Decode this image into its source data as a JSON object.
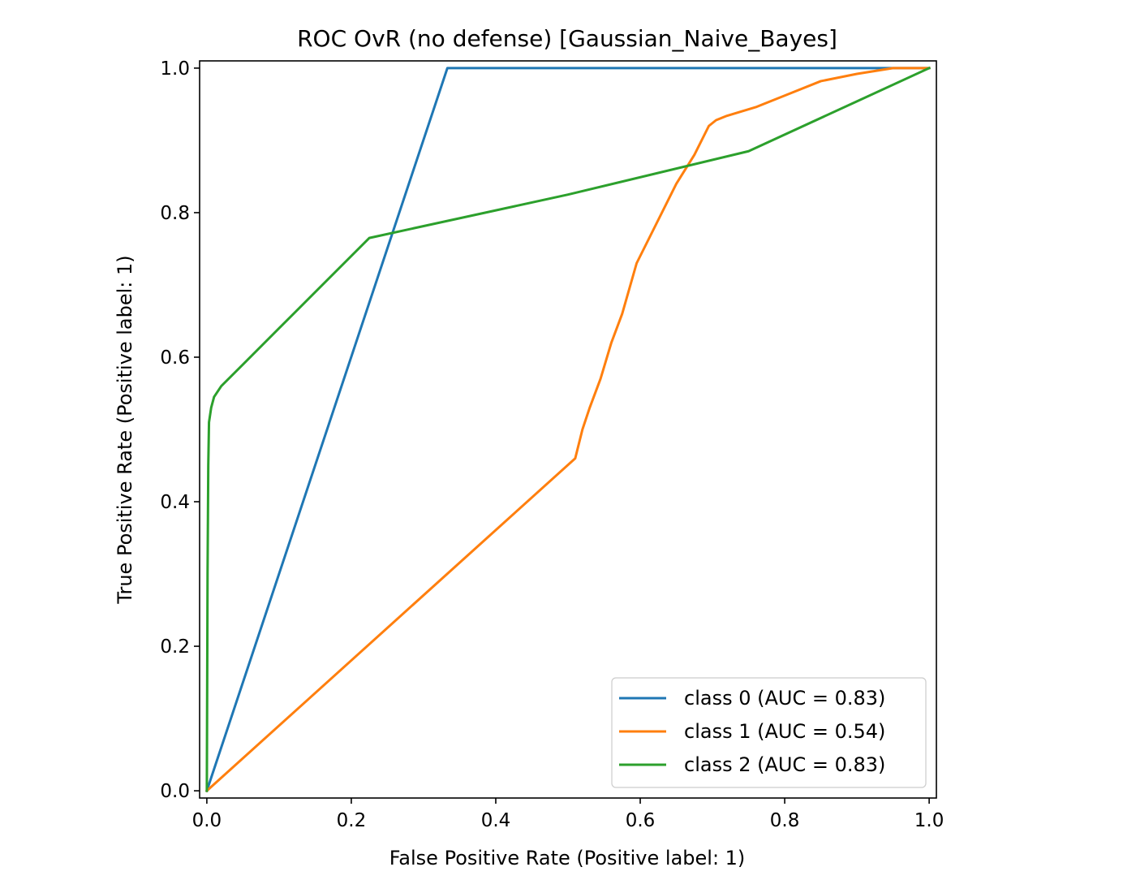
{
  "chart_data": {
    "type": "line",
    "title": "ROC OvR (no defense) [Gaussian_Naive_Bayes]",
    "xlabel": "False Positive Rate (Positive label: 1)",
    "ylabel": "True Positive Rate (Positive label: 1)",
    "xlim": [
      -0.01,
      1.01
    ],
    "ylim": [
      -0.01,
      1.01
    ],
    "xticks": [
      "0.0",
      "0.2",
      "0.4",
      "0.6",
      "0.8",
      "1.0"
    ],
    "yticks": [
      "0.0",
      "0.2",
      "0.4",
      "0.6",
      "0.8",
      "1.0"
    ],
    "grid": false,
    "legend_position": "lower right",
    "series": [
      {
        "name": "class 0 (AUC = 0.83)",
        "color": "#1f77b4",
        "x": [
          0.0,
          0.333,
          0.94,
          1.0
        ],
        "y": [
          0.0,
          1.0,
          1.0,
          1.0
        ]
      },
      {
        "name": "class 1 (AUC = 0.54)",
        "color": "#ff7f0e",
        "x": [
          0.0,
          0.51,
          0.52,
          0.53,
          0.545,
          0.56,
          0.575,
          0.595,
          0.62,
          0.65,
          0.675,
          0.695,
          0.705,
          0.72,
          0.76,
          0.8,
          0.85,
          0.9,
          0.95,
          1.0
        ],
        "y": [
          0.0,
          0.46,
          0.5,
          0.53,
          0.57,
          0.62,
          0.66,
          0.73,
          0.78,
          0.84,
          0.88,
          0.92,
          0.928,
          0.934,
          0.946,
          0.962,
          0.982,
          0.992,
          1.0,
          1.0
        ]
      },
      {
        "name": "class 2 (AUC = 0.83)",
        "color": "#2ca02c",
        "x": [
          0.0,
          0.001,
          0.002,
          0.003,
          0.006,
          0.01,
          0.02,
          0.05,
          0.1,
          0.15,
          0.2,
          0.225,
          0.5,
          0.75,
          1.0
        ],
        "y": [
          0.0,
          0.3,
          0.45,
          0.51,
          0.53,
          0.545,
          0.56,
          0.59,
          0.64,
          0.69,
          0.74,
          0.765,
          0.825,
          0.885,
          1.0
        ]
      }
    ]
  }
}
